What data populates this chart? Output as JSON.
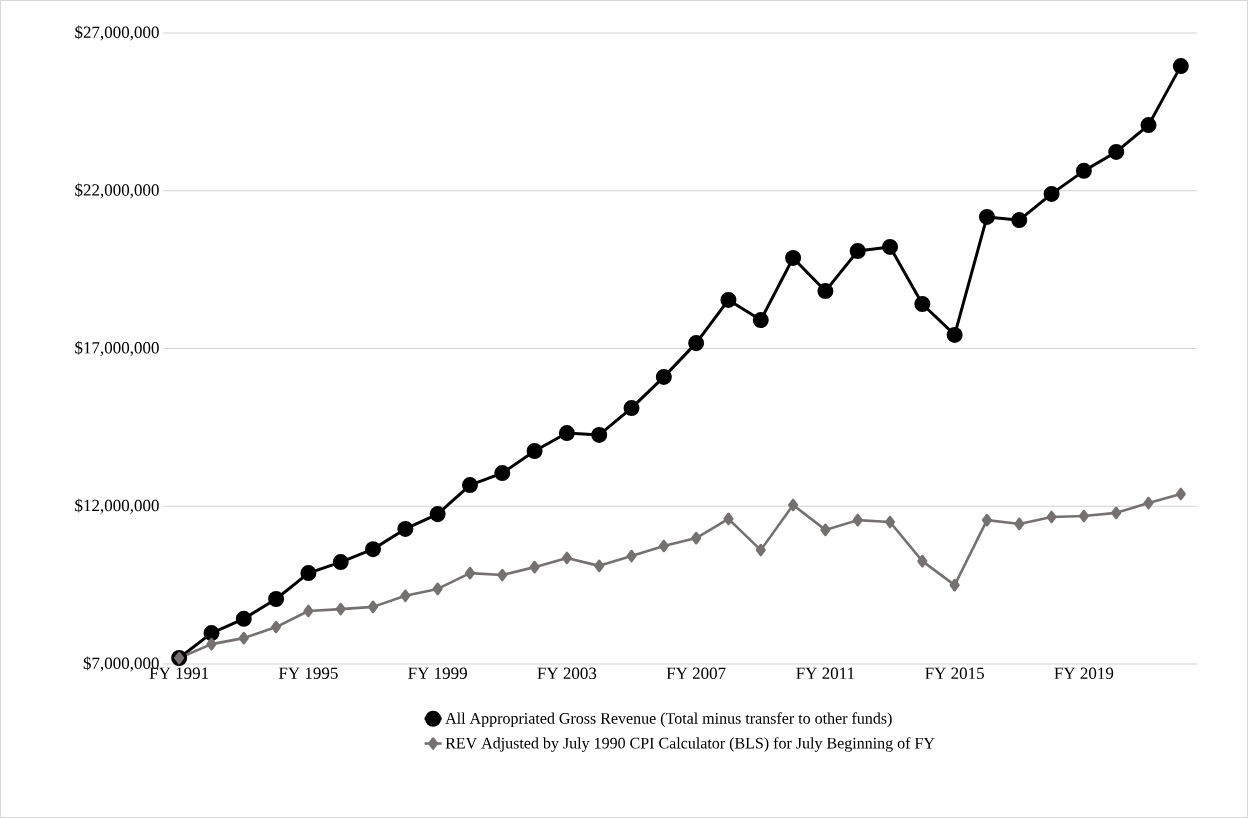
{
  "chart_data": {
    "type": "line",
    "categories": [
      "FY 1991",
      null,
      null,
      null,
      "FY 1995",
      null,
      null,
      null,
      "FY 1999",
      null,
      null,
      null,
      "FY 2003",
      null,
      null,
      null,
      "FY 2007",
      null,
      null,
      null,
      "FY 2011",
      null,
      null,
      null,
      "FY 2015",
      null,
      null,
      null,
      "FY 2019",
      null,
      null,
      null
    ],
    "series": [
      {
        "name": "All Appropriated Gross Revenue (Total minus transfer to other funds)",
        "color": "#000000",
        "marker": "circle",
        "values": [
          7190000,
          7980000,
          8430000,
          9060000,
          9880000,
          10230000,
          10640000,
          11280000,
          11750000,
          12670000,
          13050000,
          13750000,
          14320000,
          14260000,
          15110000,
          16100000,
          17170000,
          18540000,
          17900000,
          19870000,
          18820000,
          20090000,
          20220000,
          18410000,
          17430000,
          21170000,
          21070000,
          21900000,
          22630000,
          23230000,
          24080000,
          25950000
        ]
      },
      {
        "name": "REV Adjusted by July 1990 CPI Calculator (BLS) for July Beginning of FY",
        "color": "#767171",
        "marker": "diamond",
        "values": [
          7190000,
          7630000,
          7820000,
          8170000,
          8680000,
          8740000,
          8810000,
          9160000,
          9380000,
          9880000,
          9820000,
          10070000,
          10360000,
          10110000,
          10420000,
          10740000,
          10990000,
          11600000,
          10610000,
          12040000,
          11250000,
          11560000,
          11500000,
          10260000,
          9500000,
          11560000,
          11440000,
          11660000,
          11690000,
          11790000,
          12100000,
          12390000
        ]
      }
    ],
    "ylim": [
      7000000,
      27000000
    ],
    "yticks": [
      {
        "value": 7000000,
        "label": "$7,000,000"
      },
      {
        "value": 12000000,
        "label": "$12,000,000"
      },
      {
        "value": 17000000,
        "label": "$17,000,000"
      },
      {
        "value": 22000000,
        "label": "$22,000,000"
      },
      {
        "value": 27000000,
        "label": "$27,000,000"
      }
    ],
    "grid": "y",
    "legend": "bottom",
    "line_style": "solid"
  }
}
